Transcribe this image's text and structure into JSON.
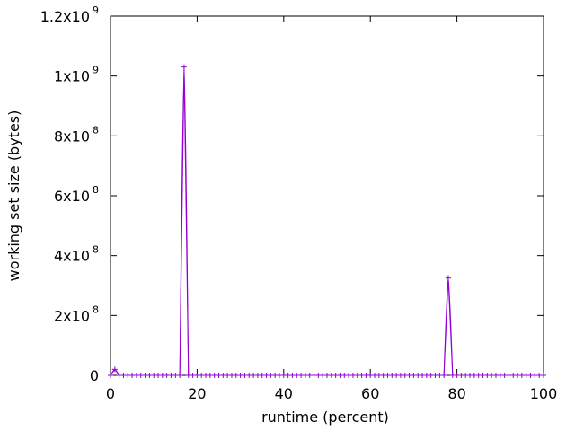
{
  "chart_data": {
    "type": "line",
    "title": "",
    "xlabel": "runtime (percent)",
    "ylabel": "working set size (bytes)",
    "xlim": [
      0,
      100
    ],
    "ylim": [
      0,
      1200000000
    ],
    "grid": false,
    "legend": "none",
    "series_color": "#9400d3",
    "x_ticks": [
      {
        "value": 0,
        "label": "0"
      },
      {
        "value": 20,
        "label": "20"
      },
      {
        "value": 40,
        "label": "40"
      },
      {
        "value": 60,
        "label": "60"
      },
      {
        "value": 80,
        "label": "80"
      },
      {
        "value": 100,
        "label": "100"
      }
    ],
    "y_ticks": [
      {
        "value": 0,
        "base": "0",
        "exp": ""
      },
      {
        "value": 200000000,
        "base": "2x10",
        "exp": "8"
      },
      {
        "value": 400000000,
        "base": "4x10",
        "exp": "8"
      },
      {
        "value": 600000000,
        "base": "6x10",
        "exp": "8"
      },
      {
        "value": 800000000,
        "base": "8x10",
        "exp": "8"
      },
      {
        "value": 1000000000,
        "base": "1x10",
        "exp": "9"
      },
      {
        "value": 1200000000,
        "base": "1.2x10",
        "exp": "9"
      }
    ],
    "series": [
      {
        "x": [
          0,
          1,
          2,
          3,
          4,
          5,
          6,
          7,
          8,
          9,
          10,
          11,
          12,
          13,
          14,
          15,
          16,
          17,
          18,
          19,
          20,
          21,
          22,
          23,
          24,
          25,
          26,
          27,
          28,
          29,
          30,
          31,
          32,
          33,
          34,
          35,
          36,
          37,
          38,
          39,
          40,
          41,
          42,
          43,
          44,
          45,
          46,
          47,
          48,
          49,
          50,
          51,
          52,
          53,
          54,
          55,
          56,
          57,
          58,
          59,
          60,
          61,
          62,
          63,
          64,
          65,
          66,
          67,
          68,
          69,
          70,
          71,
          72,
          73,
          74,
          75,
          76,
          77,
          78,
          79,
          80,
          81,
          82,
          83,
          84,
          85,
          86,
          87,
          88,
          89,
          90,
          91,
          92,
          93,
          94,
          95,
          96,
          97,
          98,
          99,
          100
        ],
        "y": [
          0,
          20000000,
          0,
          0,
          0,
          0,
          0,
          0,
          0,
          0,
          0,
          0,
          0,
          0,
          0,
          0,
          0,
          1030000000,
          0,
          0,
          0,
          0,
          0,
          0,
          0,
          0,
          0,
          0,
          0,
          0,
          0,
          0,
          0,
          0,
          0,
          0,
          0,
          0,
          0,
          0,
          0,
          0,
          0,
          0,
          0,
          0,
          0,
          0,
          0,
          0,
          0,
          0,
          0,
          0,
          0,
          0,
          0,
          0,
          0,
          0,
          0,
          0,
          0,
          0,
          0,
          0,
          0,
          0,
          0,
          0,
          0,
          0,
          0,
          0,
          0,
          0,
          0,
          0,
          325000000,
          0,
          0,
          0,
          0,
          0,
          0,
          0,
          0,
          0,
          0,
          0,
          0,
          0,
          0,
          0,
          0,
          0,
          0,
          0,
          0,
          0,
          0
        ]
      }
    ]
  }
}
